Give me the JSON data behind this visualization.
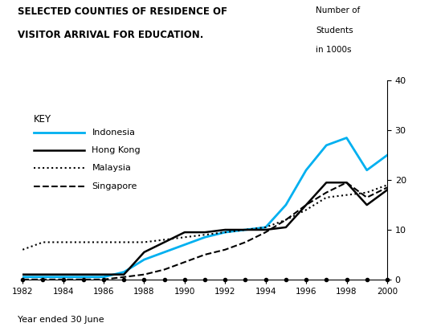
{
  "title_line1": "SELECTED COUNTIES OF RESIDENCE OF",
  "title_line2": "VISITOR ARRIVAL FOR EDUCATION.",
  "xlabel": "Year ended 30 June",
  "years": [
    1982,
    1983,
    1984,
    1985,
    1986,
    1987,
    1988,
    1989,
    1990,
    1991,
    1992,
    1993,
    1994,
    1995,
    1996,
    1997,
    1998,
    1999,
    2000
  ],
  "indonesia": [
    0.5,
    0.5,
    0.5,
    0.5,
    0.5,
    1.5,
    4.0,
    5.5,
    7.0,
    8.5,
    9.5,
    10.0,
    10.5,
    15.0,
    22.0,
    27.0,
    28.5,
    22.0,
    25.0
  ],
  "hong_kong": [
    1.0,
    1.0,
    1.0,
    1.0,
    1.0,
    1.0,
    5.5,
    7.5,
    9.5,
    9.5,
    10.0,
    10.0,
    10.0,
    10.5,
    15.0,
    19.5,
    19.5,
    15.0,
    18.0
  ],
  "malaysia": [
    6.0,
    7.5,
    7.5,
    7.5,
    7.5,
    7.5,
    7.5,
    8.0,
    8.5,
    9.0,
    9.5,
    10.0,
    10.5,
    12.0,
    14.0,
    16.5,
    17.0,
    17.5,
    19.0
  ],
  "singapore": [
    0.0,
    0.0,
    0.0,
    0.0,
    0.0,
    0.5,
    1.0,
    2.0,
    3.5,
    5.0,
    6.0,
    7.5,
    9.5,
    12.0,
    15.0,
    17.5,
    19.5,
    16.5,
    18.5
  ],
  "indonesia_color": "#00b0f0",
  "hong_kong_color": "#000000",
  "malaysia_color": "#000000",
  "singapore_color": "#000000",
  "ylim": [
    0,
    40
  ],
  "yticks": [
    0,
    10,
    20,
    30,
    40
  ],
  "xticks": [
    1982,
    1984,
    1986,
    1988,
    1990,
    1992,
    1994,
    1996,
    1998,
    2000
  ],
  "bg_color": "#ffffff",
  "ylabel_line1": "Number of",
  "ylabel_line2": "Students",
  "ylabel_line3": "in 1000s"
}
